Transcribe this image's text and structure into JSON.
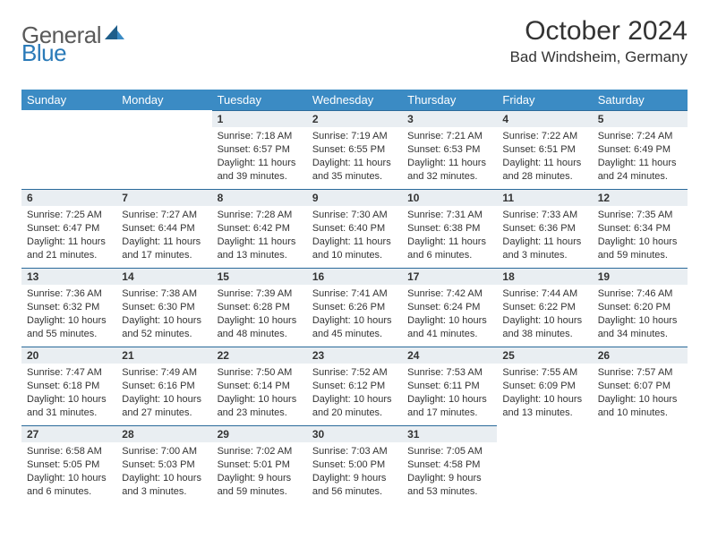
{
  "brand": {
    "text1": "General",
    "text2": "Blue",
    "text1_color": "#5a5a5a",
    "text2_color": "#2a7ab8",
    "icon_color_dark": "#1f5e8a",
    "icon_color_light": "#3b8bc4"
  },
  "title": {
    "month_year": "October 2024",
    "location": "Bad Windsheim, Germany"
  },
  "styling": {
    "header_bg": "#3b8bc4",
    "header_fg": "#ffffff",
    "daynum_bg": "#e9eef2",
    "daynum_border": "#2a6a9a",
    "body_font_size": 11,
    "daynum_font_size": 12,
    "weekday_font_size": 13
  },
  "weekdays": [
    "Sunday",
    "Monday",
    "Tuesday",
    "Wednesday",
    "Thursday",
    "Friday",
    "Saturday"
  ],
  "weeks": [
    [
      {
        "empty": true
      },
      {
        "empty": true
      },
      {
        "day": "1",
        "sunrise": "Sunrise: 7:18 AM",
        "sunset": "Sunset: 6:57 PM",
        "daylight1": "Daylight: 11 hours",
        "daylight2": "and 39 minutes."
      },
      {
        "day": "2",
        "sunrise": "Sunrise: 7:19 AM",
        "sunset": "Sunset: 6:55 PM",
        "daylight1": "Daylight: 11 hours",
        "daylight2": "and 35 minutes."
      },
      {
        "day": "3",
        "sunrise": "Sunrise: 7:21 AM",
        "sunset": "Sunset: 6:53 PM",
        "daylight1": "Daylight: 11 hours",
        "daylight2": "and 32 minutes."
      },
      {
        "day": "4",
        "sunrise": "Sunrise: 7:22 AM",
        "sunset": "Sunset: 6:51 PM",
        "daylight1": "Daylight: 11 hours",
        "daylight2": "and 28 minutes."
      },
      {
        "day": "5",
        "sunrise": "Sunrise: 7:24 AM",
        "sunset": "Sunset: 6:49 PM",
        "daylight1": "Daylight: 11 hours",
        "daylight2": "and 24 minutes."
      }
    ],
    [
      {
        "day": "6",
        "sunrise": "Sunrise: 7:25 AM",
        "sunset": "Sunset: 6:47 PM",
        "daylight1": "Daylight: 11 hours",
        "daylight2": "and 21 minutes."
      },
      {
        "day": "7",
        "sunrise": "Sunrise: 7:27 AM",
        "sunset": "Sunset: 6:44 PM",
        "daylight1": "Daylight: 11 hours",
        "daylight2": "and 17 minutes."
      },
      {
        "day": "8",
        "sunrise": "Sunrise: 7:28 AM",
        "sunset": "Sunset: 6:42 PM",
        "daylight1": "Daylight: 11 hours",
        "daylight2": "and 13 minutes."
      },
      {
        "day": "9",
        "sunrise": "Sunrise: 7:30 AM",
        "sunset": "Sunset: 6:40 PM",
        "daylight1": "Daylight: 11 hours",
        "daylight2": "and 10 minutes."
      },
      {
        "day": "10",
        "sunrise": "Sunrise: 7:31 AM",
        "sunset": "Sunset: 6:38 PM",
        "daylight1": "Daylight: 11 hours",
        "daylight2": "and 6 minutes."
      },
      {
        "day": "11",
        "sunrise": "Sunrise: 7:33 AM",
        "sunset": "Sunset: 6:36 PM",
        "daylight1": "Daylight: 11 hours",
        "daylight2": "and 3 minutes."
      },
      {
        "day": "12",
        "sunrise": "Sunrise: 7:35 AM",
        "sunset": "Sunset: 6:34 PM",
        "daylight1": "Daylight: 10 hours",
        "daylight2": "and 59 minutes."
      }
    ],
    [
      {
        "day": "13",
        "sunrise": "Sunrise: 7:36 AM",
        "sunset": "Sunset: 6:32 PM",
        "daylight1": "Daylight: 10 hours",
        "daylight2": "and 55 minutes."
      },
      {
        "day": "14",
        "sunrise": "Sunrise: 7:38 AM",
        "sunset": "Sunset: 6:30 PM",
        "daylight1": "Daylight: 10 hours",
        "daylight2": "and 52 minutes."
      },
      {
        "day": "15",
        "sunrise": "Sunrise: 7:39 AM",
        "sunset": "Sunset: 6:28 PM",
        "daylight1": "Daylight: 10 hours",
        "daylight2": "and 48 minutes."
      },
      {
        "day": "16",
        "sunrise": "Sunrise: 7:41 AM",
        "sunset": "Sunset: 6:26 PM",
        "daylight1": "Daylight: 10 hours",
        "daylight2": "and 45 minutes."
      },
      {
        "day": "17",
        "sunrise": "Sunrise: 7:42 AM",
        "sunset": "Sunset: 6:24 PM",
        "daylight1": "Daylight: 10 hours",
        "daylight2": "and 41 minutes."
      },
      {
        "day": "18",
        "sunrise": "Sunrise: 7:44 AM",
        "sunset": "Sunset: 6:22 PM",
        "daylight1": "Daylight: 10 hours",
        "daylight2": "and 38 minutes."
      },
      {
        "day": "19",
        "sunrise": "Sunrise: 7:46 AM",
        "sunset": "Sunset: 6:20 PM",
        "daylight1": "Daylight: 10 hours",
        "daylight2": "and 34 minutes."
      }
    ],
    [
      {
        "day": "20",
        "sunrise": "Sunrise: 7:47 AM",
        "sunset": "Sunset: 6:18 PM",
        "daylight1": "Daylight: 10 hours",
        "daylight2": "and 31 minutes."
      },
      {
        "day": "21",
        "sunrise": "Sunrise: 7:49 AM",
        "sunset": "Sunset: 6:16 PM",
        "daylight1": "Daylight: 10 hours",
        "daylight2": "and 27 minutes."
      },
      {
        "day": "22",
        "sunrise": "Sunrise: 7:50 AM",
        "sunset": "Sunset: 6:14 PM",
        "daylight1": "Daylight: 10 hours",
        "daylight2": "and 23 minutes."
      },
      {
        "day": "23",
        "sunrise": "Sunrise: 7:52 AM",
        "sunset": "Sunset: 6:12 PM",
        "daylight1": "Daylight: 10 hours",
        "daylight2": "and 20 minutes."
      },
      {
        "day": "24",
        "sunrise": "Sunrise: 7:53 AM",
        "sunset": "Sunset: 6:11 PM",
        "daylight1": "Daylight: 10 hours",
        "daylight2": "and 17 minutes."
      },
      {
        "day": "25",
        "sunrise": "Sunrise: 7:55 AM",
        "sunset": "Sunset: 6:09 PM",
        "daylight1": "Daylight: 10 hours",
        "daylight2": "and 13 minutes."
      },
      {
        "day": "26",
        "sunrise": "Sunrise: 7:57 AM",
        "sunset": "Sunset: 6:07 PM",
        "daylight1": "Daylight: 10 hours",
        "daylight2": "and 10 minutes."
      }
    ],
    [
      {
        "day": "27",
        "sunrise": "Sunrise: 6:58 AM",
        "sunset": "Sunset: 5:05 PM",
        "daylight1": "Daylight: 10 hours",
        "daylight2": "and 6 minutes."
      },
      {
        "day": "28",
        "sunrise": "Sunrise: 7:00 AM",
        "sunset": "Sunset: 5:03 PM",
        "daylight1": "Daylight: 10 hours",
        "daylight2": "and 3 minutes."
      },
      {
        "day": "29",
        "sunrise": "Sunrise: 7:02 AM",
        "sunset": "Sunset: 5:01 PM",
        "daylight1": "Daylight: 9 hours",
        "daylight2": "and 59 minutes."
      },
      {
        "day": "30",
        "sunrise": "Sunrise: 7:03 AM",
        "sunset": "Sunset: 5:00 PM",
        "daylight1": "Daylight: 9 hours",
        "daylight2": "and 56 minutes."
      },
      {
        "day": "31",
        "sunrise": "Sunrise: 7:05 AM",
        "sunset": "Sunset: 4:58 PM",
        "daylight1": "Daylight: 9 hours",
        "daylight2": "and 53 minutes."
      },
      {
        "empty": true
      },
      {
        "empty": true
      }
    ]
  ]
}
